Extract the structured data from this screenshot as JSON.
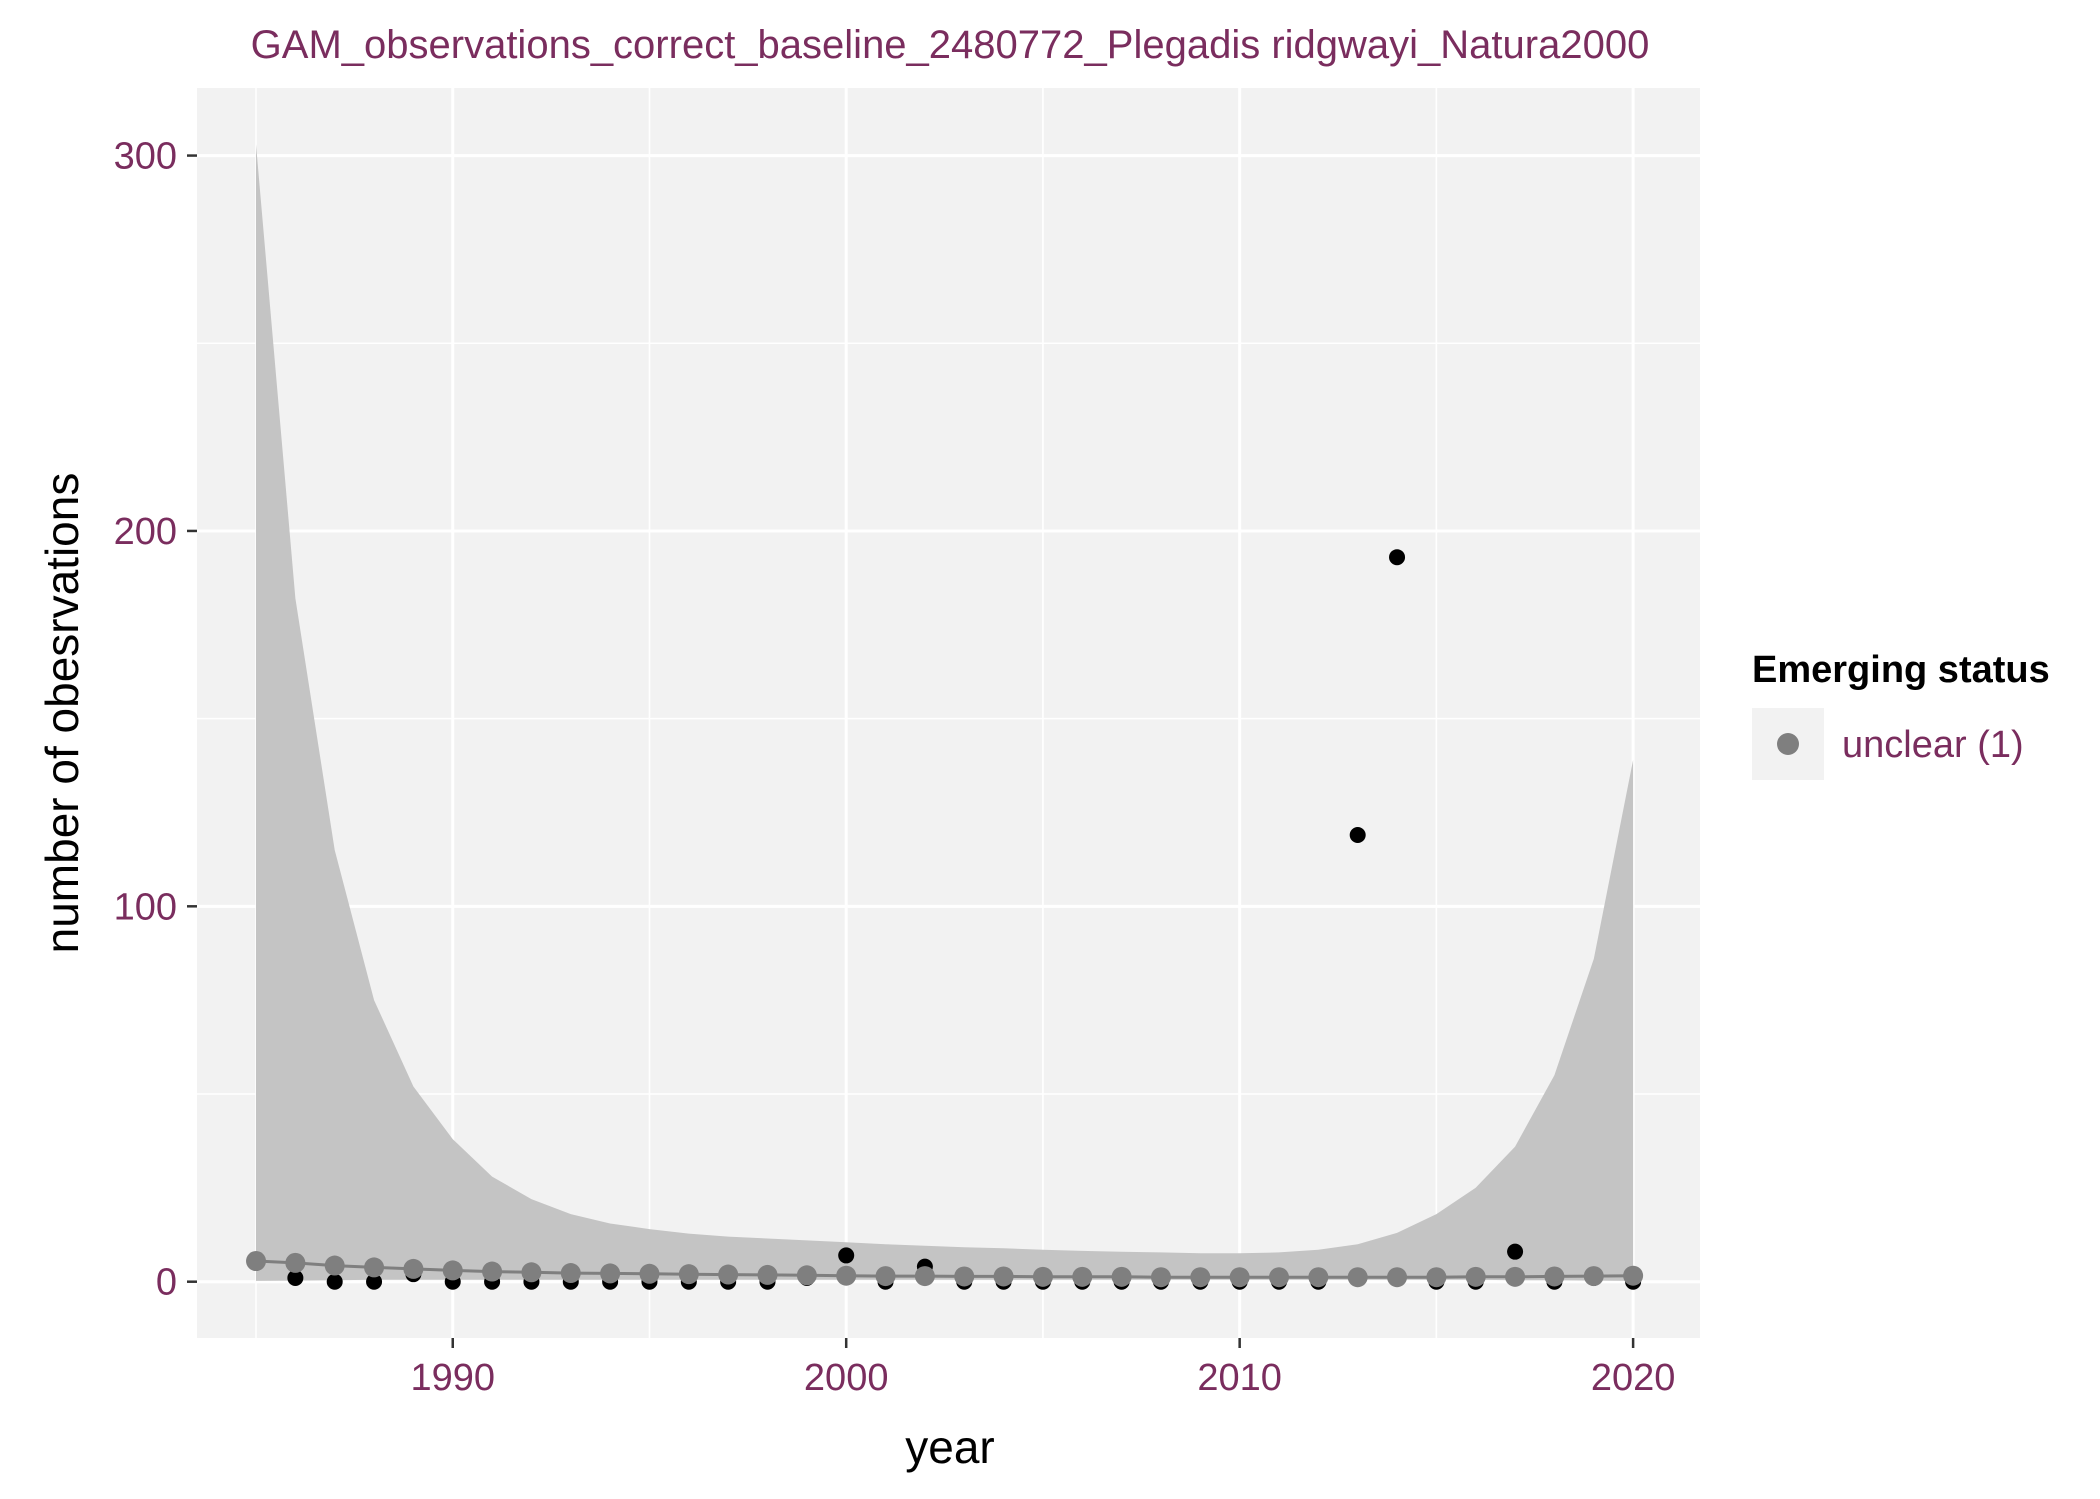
{
  "chart_data": {
    "type": "scatter",
    "title": "GAM_observations_correct_baseline_2480772_Plegadis ridgwayi_Natura2000",
    "xlabel": "year",
    "ylabel": "number of obesrvations",
    "xlim": [
      1983.5,
      2021.7
    ],
    "ylim": [
      -15,
      318
    ],
    "x_ticks": [
      1990,
      2000,
      2010,
      2020
    ],
    "x_tick_labels": [
      "1990",
      "2000",
      "2010",
      "2020"
    ],
    "y_ticks": [
      0,
      100,
      200,
      300
    ],
    "y_tick_labels": [
      "0",
      "100",
      "200",
      "300"
    ],
    "grid": true,
    "legend": {
      "title": "Emerging status",
      "placement": "right",
      "entries": [
        {
          "label": "unclear (1)",
          "color": "#7f7f7f"
        }
      ]
    },
    "colors": {
      "panel": "#f2f2f2",
      "grid": "#ffffff",
      "ribbon": "#c4c4c4",
      "fit": "#7f7f7f",
      "observed": "#000000"
    },
    "observed": {
      "x": [
        1985,
        1986,
        1987,
        1988,
        1989,
        1990,
        1991,
        1992,
        1993,
        1994,
        1995,
        1996,
        1997,
        1998,
        1999,
        2000,
        2001,
        2002,
        2003,
        2004,
        2005,
        2006,
        2007,
        2008,
        2009,
        2010,
        2011,
        2012,
        2013,
        2014,
        2015,
        2016,
        2017,
        2018,
        2019,
        2020
      ],
      "y": [
        5,
        1,
        0,
        0,
        2,
        0,
        0,
        0,
        0,
        0,
        0,
        0,
        0,
        0,
        1,
        7,
        0,
        4,
        0,
        0,
        0,
        0,
        0,
        0,
        0,
        0,
        0,
        0,
        119,
        193,
        0,
        0,
        8,
        0,
        1,
        0
      ]
    },
    "fitted": {
      "x": [
        1985,
        1986,
        1987,
        1988,
        1989,
        1990,
        1991,
        1992,
        1993,
        1994,
        1995,
        1996,
        1997,
        1998,
        1999,
        2000,
        2001,
        2002,
        2003,
        2004,
        2005,
        2006,
        2007,
        2008,
        2009,
        2010,
        2011,
        2012,
        2013,
        2014,
        2015,
        2016,
        2017,
        2018,
        2019,
        2020
      ],
      "y": [
        5.5,
        5,
        4.3,
        3.8,
        3.4,
        3,
        2.7,
        2.5,
        2.3,
        2.2,
        2.1,
        2,
        1.9,
        1.8,
        1.7,
        1.6,
        1.5,
        1.5,
        1.4,
        1.4,
        1.3,
        1.3,
        1.3,
        1.2,
        1.2,
        1.2,
        1.2,
        1.2,
        1.2,
        1.2,
        1.2,
        1.3,
        1.3,
        1.4,
        1.5,
        1.6
      ],
      "lower": [
        0.2,
        0.3,
        0.4,
        0.5,
        0.5,
        0.5,
        0.5,
        0.5,
        0.5,
        0.5,
        0.5,
        0.5,
        0.5,
        0.5,
        0.5,
        0.5,
        0.5,
        0.5,
        0.5,
        0.5,
        0.5,
        0.5,
        0.5,
        0.5,
        0.5,
        0.5,
        0.5,
        0.5,
        0.5,
        0.5,
        0.5,
        0.5,
        0.4,
        0.4,
        0.3,
        0.2
      ],
      "upper": [
        303,
        182,
        115,
        75,
        52,
        38,
        28,
        22,
        18,
        15.5,
        14,
        12.8,
        12,
        11.5,
        11,
        10.5,
        10,
        9.6,
        9.2,
        8.9,
        8.5,
        8.2,
        8,
        7.8,
        7.6,
        7.6,
        7.8,
        8.5,
        10,
        13,
        18,
        25,
        36,
        55,
        86,
        139
      ]
    }
  }
}
